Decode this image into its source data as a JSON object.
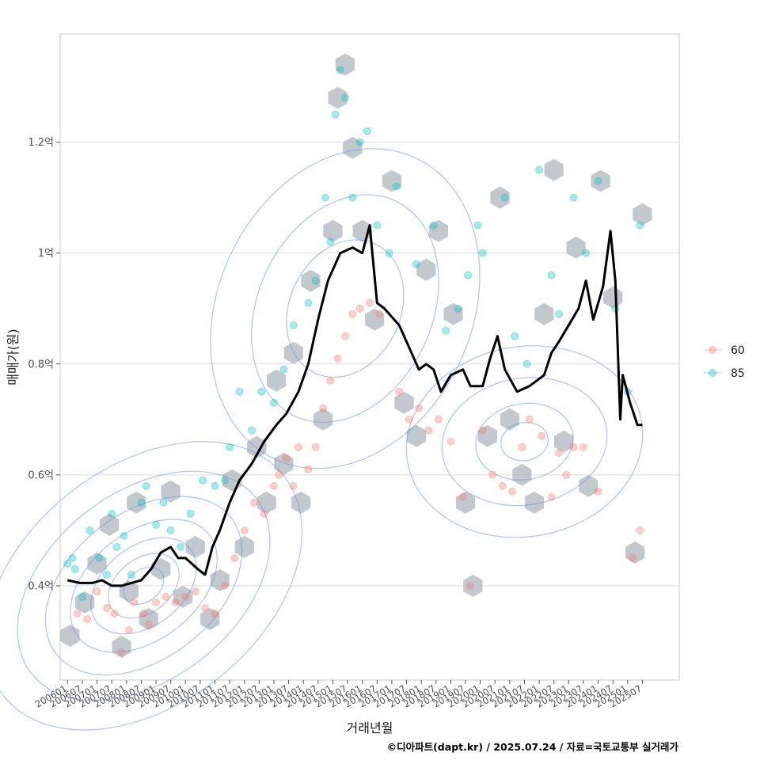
{
  "chart_data": {
    "type": "scatter",
    "xlabel": "거래년월",
    "ylabel": "매매가(원)",
    "caption": "©디아파트(dapt.kr) / 2025.07.24 / 자료=국토교통부 실거래가",
    "y_unit": "억",
    "ylim": [
      0.23,
      1.395
    ],
    "y_ticks": [
      {
        "value": 0.4,
        "label": "0.4억"
      },
      {
        "value": 0.6,
        "label": "0.6억"
      },
      {
        "value": 0.8,
        "label": "0.8억"
      },
      {
        "value": 1.0,
        "label": "1억"
      },
      {
        "value": 1.2,
        "label": "1.2억"
      }
    ],
    "xlim": [
      "2005-10",
      "2026-10"
    ],
    "x_ticks": [
      "200601",
      "200607",
      "200701",
      "200707",
      "200801",
      "200807",
      "200901",
      "200907",
      "201001",
      "201007",
      "201101",
      "201107",
      "201201",
      "201207",
      "201301",
      "201307",
      "201401",
      "201407",
      "201501",
      "201507",
      "201601",
      "201607",
      "201701",
      "201707",
      "201801",
      "201807",
      "201901",
      "201907",
      "202001",
      "202007",
      "202101",
      "202107",
      "202201",
      "202207",
      "202301",
      "202307",
      "202401",
      "202407",
      "202501",
      "202507"
    ],
    "grid": true,
    "legend": {
      "position": "right",
      "entries": [
        {
          "label": "60",
          "color": "#F8766D"
        },
        {
          "label": "85",
          "color": "#00BFC4"
        }
      ]
    },
    "layers": [
      "hexbin density of transactions",
      "2D density contours",
      "monthly median price line"
    ],
    "colors": {
      "hex": "#a9b0b8",
      "contour": "#6b8de3",
      "line": "#000000",
      "grid": "#dedede"
    },
    "trend_line": [
      [
        "2006-01",
        0.41
      ],
      [
        "2006-06",
        0.405
      ],
      [
        "2006-11",
        0.405
      ],
      [
        "2007-03",
        0.41
      ],
      [
        "2007-07",
        0.4
      ],
      [
        "2007-11",
        0.4
      ],
      [
        "2008-03",
        0.405
      ],
      [
        "2008-07",
        0.41
      ],
      [
        "2008-11",
        0.43
      ],
      [
        "2009-03",
        0.46
      ],
      [
        "2009-07",
        0.47
      ],
      [
        "2009-10",
        0.45
      ],
      [
        "2010-01",
        0.45
      ],
      [
        "2010-06",
        0.43
      ],
      [
        "2010-09",
        0.42
      ],
      [
        "2010-12",
        0.47
      ],
      [
        "2011-03",
        0.5
      ],
      [
        "2011-07",
        0.55
      ],
      [
        "2011-11",
        0.59
      ],
      [
        "2012-04",
        0.62
      ],
      [
        "2012-09",
        0.66
      ],
      [
        "2013-02",
        0.69
      ],
      [
        "2013-06",
        0.71
      ],
      [
        "2013-11",
        0.75
      ],
      [
        "2014-03",
        0.8
      ],
      [
        "2014-07",
        0.88
      ],
      [
        "2014-11",
        0.95
      ],
      [
        "2015-04",
        1.0
      ],
      [
        "2015-09",
        1.01
      ],
      [
        "2016-01",
        1.0
      ],
      [
        "2016-04",
        1.05
      ],
      [
        "2016-07",
        0.91
      ],
      [
        "2016-10",
        0.9
      ],
      [
        "2017-04",
        0.87
      ],
      [
        "2017-08",
        0.83
      ],
      [
        "2017-12",
        0.79
      ],
      [
        "2018-03",
        0.8
      ],
      [
        "2018-06",
        0.79
      ],
      [
        "2018-09",
        0.75
      ],
      [
        "2019-01",
        0.78
      ],
      [
        "2019-06",
        0.79
      ],
      [
        "2019-09",
        0.76
      ],
      [
        "2020-02",
        0.76
      ],
      [
        "2020-05",
        0.81
      ],
      [
        "2020-08",
        0.85
      ],
      [
        "2020-11",
        0.79
      ],
      [
        "2021-04",
        0.75
      ],
      [
        "2021-09",
        0.76
      ],
      [
        "2022-03",
        0.78
      ],
      [
        "2022-06",
        0.82
      ],
      [
        "2022-09",
        0.84
      ],
      [
        "2023-01",
        0.87
      ],
      [
        "2023-05",
        0.9
      ],
      [
        "2023-08",
        0.95
      ],
      [
        "2023-11",
        0.88
      ],
      [
        "2024-03",
        0.94
      ],
      [
        "2024-06",
        1.04
      ],
      [
        "2024-08",
        0.95
      ],
      [
        "2024-10",
        0.7
      ],
      [
        "2024-11",
        0.78
      ],
      [
        "2025-02",
        0.73
      ],
      [
        "2025-05",
        0.69
      ],
      [
        "2025-07",
        0.69
      ]
    ],
    "series": [
      {
        "name": "60",
        "points": [
          [
            "2006-05",
            0.35
          ],
          [
            "2006-09",
            0.34
          ],
          [
            "2007-01",
            0.39
          ],
          [
            "2007-05",
            0.36
          ],
          [
            "2007-08",
            0.35
          ],
          [
            "2007-11",
            0.28
          ],
          [
            "2008-02",
            0.32
          ],
          [
            "2008-04",
            0.37
          ],
          [
            "2008-08",
            0.35
          ],
          [
            "2008-10",
            0.33
          ],
          [
            "2009-01",
            0.37
          ],
          [
            "2009-05",
            0.38
          ],
          [
            "2009-09",
            0.37
          ],
          [
            "2010-01",
            0.38
          ],
          [
            "2010-05",
            0.39
          ],
          [
            "2010-09",
            0.36
          ],
          [
            "2011-01",
            0.35
          ],
          [
            "2011-05",
            0.4
          ],
          [
            "2011-09",
            0.45
          ],
          [
            "2012-01",
            0.5
          ],
          [
            "2012-05",
            0.55
          ],
          [
            "2012-09",
            0.53
          ],
          [
            "2013-01",
            0.58
          ],
          [
            "2013-03",
            0.6
          ],
          [
            "2013-06",
            0.63
          ],
          [
            "2013-09",
            0.58
          ],
          [
            "2013-11",
            0.65
          ],
          [
            "2014-03",
            0.61
          ],
          [
            "2014-06",
            0.65
          ],
          [
            "2014-09",
            0.72
          ],
          [
            "2014-12",
            0.77
          ],
          [
            "2015-03",
            0.81
          ],
          [
            "2015-06",
            0.85
          ],
          [
            "2015-09",
            0.89
          ],
          [
            "2015-12",
            0.9
          ],
          [
            "2016-04",
            0.91
          ],
          [
            "2016-08",
            0.89
          ],
          [
            "2017-04",
            0.75
          ],
          [
            "2017-08",
            0.7
          ],
          [
            "2017-12",
            0.72
          ],
          [
            "2018-04",
            0.68
          ],
          [
            "2018-08",
            0.7
          ],
          [
            "2019-01",
            0.66
          ],
          [
            "2019-06",
            0.56
          ],
          [
            "2019-09",
            0.4
          ],
          [
            "2020-02",
            0.68
          ],
          [
            "2020-06",
            0.6
          ],
          [
            "2020-10",
            0.58
          ],
          [
            "2021-02",
            0.57
          ],
          [
            "2021-06",
            0.65
          ],
          [
            "2021-09",
            0.7
          ],
          [
            "2022-02",
            0.67
          ],
          [
            "2022-06",
            0.56
          ],
          [
            "2022-09",
            0.64
          ],
          [
            "2022-12",
            0.6
          ],
          [
            "2023-03",
            0.65
          ],
          [
            "2023-07",
            0.65
          ],
          [
            "2024-01",
            0.57
          ],
          [
            "2025-03",
            0.45
          ],
          [
            "2025-06",
            0.5
          ]
        ]
      },
      {
        "name": "85",
        "points": [
          [
            "2006-01",
            0.44
          ],
          [
            "2006-03",
            0.45
          ],
          [
            "2006-04",
            0.43
          ],
          [
            "2006-07",
            0.38
          ],
          [
            "2006-10",
            0.5
          ],
          [
            "2007-02",
            0.45
          ],
          [
            "2007-05",
            0.42
          ],
          [
            "2007-07",
            0.53
          ],
          [
            "2007-09",
            0.47
          ],
          [
            "2007-12",
            0.49
          ],
          [
            "2008-03",
            0.42
          ],
          [
            "2008-07",
            0.55
          ],
          [
            "2008-09",
            0.58
          ],
          [
            "2009-01",
            0.51
          ],
          [
            "2009-04",
            0.55
          ],
          [
            "2009-07",
            0.5
          ],
          [
            "2009-11",
            0.47
          ],
          [
            "2010-03",
            0.53
          ],
          [
            "2010-08",
            0.59
          ],
          [
            "2011-01",
            0.58
          ],
          [
            "2011-05",
            0.59
          ],
          [
            "2011-07",
            0.65
          ],
          [
            "2011-11",
            0.75
          ],
          [
            "2012-04",
            0.68
          ],
          [
            "2012-08",
            0.75
          ],
          [
            "2013-01",
            0.73
          ],
          [
            "2013-05",
            0.79
          ],
          [
            "2013-09",
            0.87
          ],
          [
            "2014-03",
            0.91
          ],
          [
            "2014-06",
            0.95
          ],
          [
            "2014-10",
            1.1
          ],
          [
            "2014-12",
            1.02
          ],
          [
            "2015-02",
            1.25
          ],
          [
            "2015-04",
            1.33
          ],
          [
            "2015-06",
            1.28
          ],
          [
            "2015-09",
            1.1
          ],
          [
            "2015-12",
            1.2
          ],
          [
            "2016-03",
            1.22
          ],
          [
            "2016-07",
            1.05
          ],
          [
            "2016-12",
            1.0
          ],
          [
            "2017-03",
            1.12
          ],
          [
            "2017-11",
            0.98
          ],
          [
            "2018-06",
            1.05
          ],
          [
            "2018-11",
            0.86
          ],
          [
            "2019-04",
            0.9
          ],
          [
            "2019-08",
            0.96
          ],
          [
            "2019-12",
            1.05
          ],
          [
            "2020-02",
            1.0
          ],
          [
            "2020-11",
            1.1
          ],
          [
            "2021-03",
            0.85
          ],
          [
            "2021-08",
            0.8
          ],
          [
            "2022-01",
            1.15
          ],
          [
            "2022-06",
            0.96
          ],
          [
            "2022-09",
            0.89
          ],
          [
            "2023-03",
            1.1
          ],
          [
            "2023-08",
            1.0
          ],
          [
            "2024-01",
            1.13
          ],
          [
            "2024-08",
            0.9
          ],
          [
            "2025-01",
            0.75
          ],
          [
            "2025-06",
            1.05
          ]
        ]
      }
    ],
    "hex_centers": [
      [
        "2006-02",
        0.31
      ],
      [
        "2006-08",
        0.37
      ],
      [
        "2007-01",
        0.44
      ],
      [
        "2007-06",
        0.51
      ],
      [
        "2007-11",
        0.29
      ],
      [
        "2008-02",
        0.39
      ],
      [
        "2008-05",
        0.55
      ],
      [
        "2008-10",
        0.34
      ],
      [
        "2009-03",
        0.43
      ],
      [
        "2009-07",
        0.57
      ],
      [
        "2009-12",
        0.38
      ],
      [
        "2010-05",
        0.47
      ],
      [
        "2010-11",
        0.34
      ],
      [
        "2011-03",
        0.41
      ],
      [
        "2011-08",
        0.59
      ],
      [
        "2012-01",
        0.47
      ],
      [
        "2012-06",
        0.65
      ],
      [
        "2012-10",
        0.55
      ],
      [
        "2013-02",
        0.77
      ],
      [
        "2013-05",
        0.62
      ],
      [
        "2013-09",
        0.82
      ],
      [
        "2013-12",
        0.55
      ],
      [
        "2014-04",
        0.95
      ],
      [
        "2014-09",
        0.7
      ],
      [
        "2015-01",
        1.04
      ],
      [
        "2015-03",
        1.28
      ],
      [
        "2015-06",
        1.34
      ],
      [
        "2015-09",
        1.19
      ],
      [
        "2016-01",
        1.04
      ],
      [
        "2016-06",
        0.88
      ],
      [
        "2017-01",
        1.13
      ],
      [
        "2017-06",
        0.73
      ],
      [
        "2017-11",
        0.67
      ],
      [
        "2018-03",
        0.97
      ],
      [
        "2018-08",
        1.04
      ],
      [
        "2019-02",
        0.89
      ],
      [
        "2019-07",
        0.55
      ],
      [
        "2019-10",
        0.4
      ],
      [
        "2020-04",
        0.67
      ],
      [
        "2020-09",
        1.1
      ],
      [
        "2021-01",
        0.7
      ],
      [
        "2021-06",
        0.6
      ],
      [
        "2021-11",
        0.55
      ],
      [
        "2022-03",
        0.89
      ],
      [
        "2022-07",
        1.15
      ],
      [
        "2022-11",
        0.66
      ],
      [
        "2023-04",
        1.01
      ],
      [
        "2023-09",
        0.58
      ],
      [
        "2024-02",
        1.13
      ],
      [
        "2024-07",
        0.92
      ],
      [
        "2025-04",
        0.46
      ],
      [
        "2025-07",
        1.07
      ]
    ]
  }
}
